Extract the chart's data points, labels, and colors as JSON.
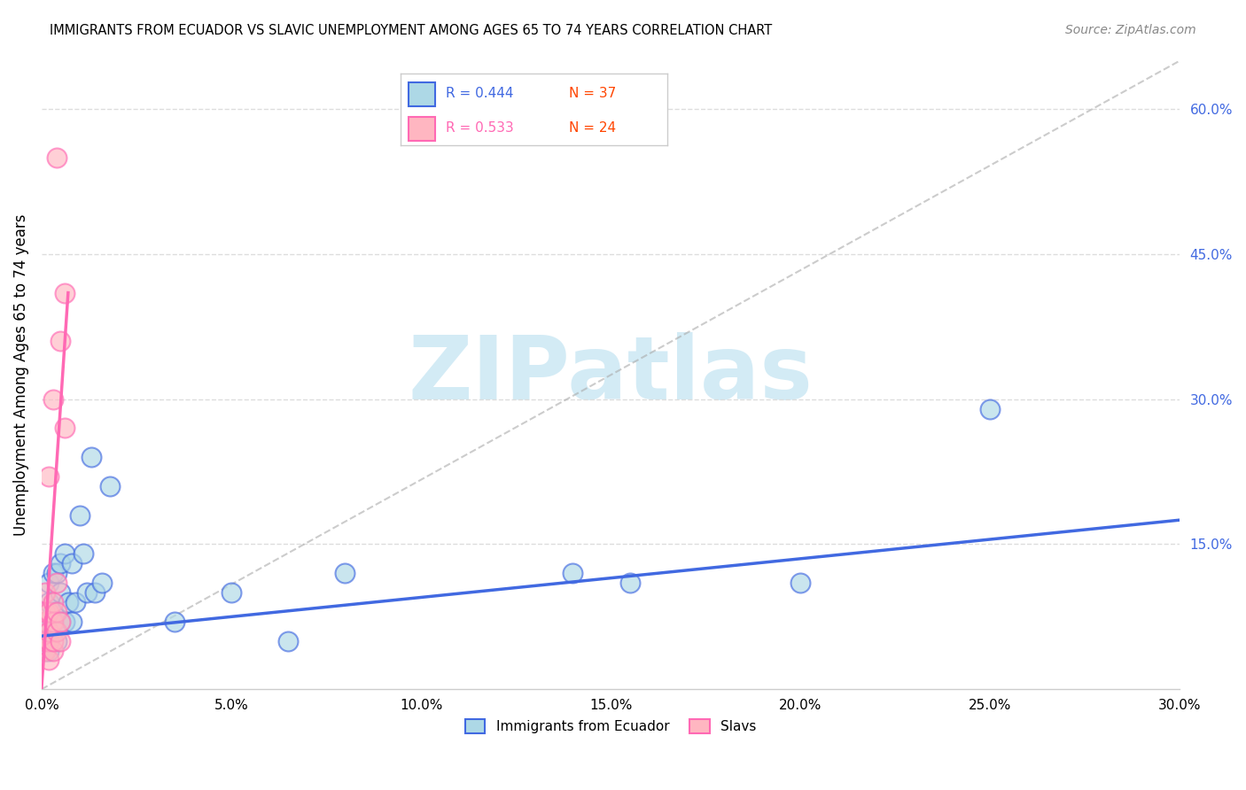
{
  "title": "IMMIGRANTS FROM ECUADOR VS SLAVIC UNEMPLOYMENT AMONG AGES 65 TO 74 YEARS CORRELATION CHART",
  "source": "Source: ZipAtlas.com",
  "ylabel": "Unemployment Among Ages 65 to 74 years",
  "x_tick_labels": [
    "0.0%",
    "5.0%",
    "10.0%",
    "15.0%",
    "20.0%",
    "25.0%",
    "30.0%"
  ],
  "x_tick_values": [
    0.0,
    0.05,
    0.1,
    0.15,
    0.2,
    0.25,
    0.3
  ],
  "y_tick_labels_right": [
    "15.0%",
    "30.0%",
    "45.0%",
    "60.0%"
  ],
  "y_tick_values_right": [
    0.15,
    0.3,
    0.45,
    0.6
  ],
  "xlim": [
    0.0,
    0.3
  ],
  "ylim": [
    0.0,
    0.65
  ],
  "legend_label_blue": "Immigrants from Ecuador",
  "legend_label_pink": "Slavs",
  "R_blue": 0.444,
  "N_blue": 37,
  "R_pink": 0.533,
  "N_pink": 24,
  "color_blue_fill": "#add8e6",
  "color_pink_fill": "#ffb6c1",
  "color_blue_edge": "#4169e1",
  "color_pink_edge": "#ff69b4",
  "color_blue_text": "#4169e1",
  "color_pink_text": "#ff69b4",
  "color_N_text": "#ff4500",
  "grid_color": "#dddddd",
  "blue_x": [
    0.001,
    0.001,
    0.001,
    0.001,
    0.002,
    0.002,
    0.002,
    0.002,
    0.003,
    0.003,
    0.003,
    0.004,
    0.004,
    0.005,
    0.005,
    0.005,
    0.006,
    0.006,
    0.007,
    0.008,
    0.008,
    0.009,
    0.01,
    0.011,
    0.012,
    0.013,
    0.014,
    0.016,
    0.018,
    0.035,
    0.05,
    0.065,
    0.08,
    0.14,
    0.155,
    0.2,
    0.25
  ],
  "blue_y": [
    0.04,
    0.05,
    0.06,
    0.07,
    0.04,
    0.05,
    0.09,
    0.11,
    0.06,
    0.08,
    0.12,
    0.05,
    0.12,
    0.07,
    0.1,
    0.13,
    0.07,
    0.14,
    0.09,
    0.07,
    0.13,
    0.09,
    0.18,
    0.14,
    0.1,
    0.24,
    0.1,
    0.11,
    0.21,
    0.07,
    0.1,
    0.05,
    0.12,
    0.12,
    0.11,
    0.11,
    0.29
  ],
  "pink_x": [
    0.001,
    0.001,
    0.001,
    0.001,
    0.001,
    0.002,
    0.002,
    0.002,
    0.002,
    0.002,
    0.003,
    0.003,
    0.003,
    0.003,
    0.003,
    0.004,
    0.004,
    0.004,
    0.004,
    0.005,
    0.005,
    0.005,
    0.006,
    0.006
  ],
  "pink_y": [
    0.04,
    0.05,
    0.07,
    0.08,
    0.1,
    0.03,
    0.05,
    0.06,
    0.08,
    0.22,
    0.04,
    0.05,
    0.07,
    0.09,
    0.3,
    0.06,
    0.08,
    0.11,
    0.55,
    0.05,
    0.07,
    0.36,
    0.27,
    0.41
  ],
  "blue_trend_x": [
    0.0,
    0.3
  ],
  "blue_trend_y": [
    0.055,
    0.175
  ],
  "pink_trend_x": [
    0.0,
    0.007
  ],
  "pink_trend_y": [
    0.0,
    0.41
  ],
  "ref_line_x": [
    0.0,
    0.3
  ],
  "ref_line_y": [
    0.0,
    0.65
  ]
}
